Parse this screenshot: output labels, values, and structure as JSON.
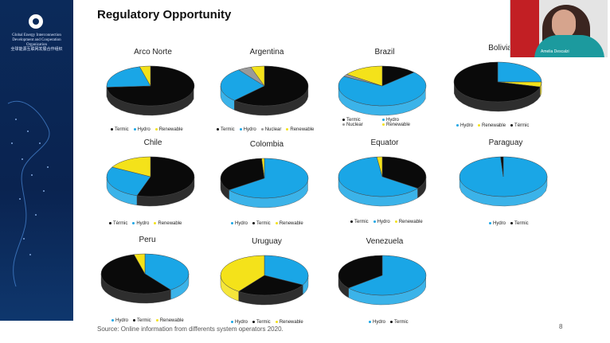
{
  "slide": {
    "title": "Regulatory Opportunity",
    "source": "Source: Online information from differents system operators 2020.",
    "page_number": "8"
  },
  "sidebar": {
    "org_name_en": "Global Energy Interconnection Development and Cooperation Organization",
    "org_name_cn": "全球能源互联网发展合作组织"
  },
  "video": {
    "participant_name": "Amelia Descalzi"
  },
  "colors": {
    "Termic": "#0a0a0a",
    "Hydro": "#1aa6e6",
    "Renewable": "#f4e21a",
    "Nuclear": "#9a9a9a"
  },
  "chart_data": [
    {
      "type": "pie",
      "title": "Arco Norte",
      "legend": [
        "Termic",
        "Hydro",
        "Renewable"
      ],
      "slices": [
        {
          "label": "Termic",
          "value": 74
        },
        {
          "label": "Hydro",
          "value": 22
        },
        {
          "label": "Renewable",
          "value": 4
        }
      ]
    },
    {
      "type": "pie",
      "title": "Argentina",
      "legend": [
        "Termic",
        "Hydro",
        "Nuclear",
        "Renewable"
      ],
      "slices": [
        {
          "label": "Termic",
          "value": 62
        },
        {
          "label": "Hydro",
          "value": 28
        },
        {
          "label": "Nuclear",
          "value": 5
        },
        {
          "label": "Renewable",
          "value": 5
        }
      ]
    },
    {
      "type": "pie",
      "title": "Brazil",
      "legend": [
        "Termic",
        "Hydro",
        "Nuclear",
        "Renewable"
      ],
      "slices": [
        {
          "label": "Termic",
          "value": 13
        },
        {
          "label": "Hydro",
          "value": 70
        },
        {
          "label": "Nuclear",
          "value": 2
        },
        {
          "label": "Renewable",
          "value": 15
        }
      ]
    },
    {
      "type": "pie",
      "title": "Bolivia",
      "legend": [
        "Hydro",
        "Renewable",
        "Térmic"
      ],
      "slices": [
        {
          "label": "Hydro",
          "value": 25
        },
        {
          "label": "Renewable",
          "value": 4
        },
        {
          "label": "Térmic",
          "value": 71
        }
      ]
    },
    {
      "type": "pie",
      "title": "Chile",
      "legend": [
        "Térmic",
        "Hydro",
        "Renewable"
      ],
      "slices": [
        {
          "label": "Térmic",
          "value": 55
        },
        {
          "label": "Hydro",
          "value": 28
        },
        {
          "label": "Renewable",
          "value": 17
        }
      ]
    },
    {
      "type": "pie",
      "title": "Colombia",
      "legend": [
        "Hydro",
        "Termic",
        "Renewable"
      ],
      "slices": [
        {
          "label": "Hydro",
          "value": 65
        },
        {
          "label": "Termic",
          "value": 34
        },
        {
          "label": "Renewable",
          "value": 1
        }
      ]
    },
    {
      "type": "pie",
      "title": "Equator",
      "legend": [
        "Termic",
        "Hydro",
        "Renewable"
      ],
      "slices": [
        {
          "label": "Termic",
          "value": 35
        },
        {
          "label": "Hydro",
          "value": 63
        },
        {
          "label": "Renewable",
          "value": 2
        }
      ]
    },
    {
      "type": "pie",
      "title": "Paraguay",
      "legend": [
        "Hydro",
        "Termic"
      ],
      "slices": [
        {
          "label": "Hydro",
          "value": 99
        },
        {
          "label": "Termic",
          "value": 1
        }
      ]
    },
    {
      "type": "pie",
      "title": "Peru",
      "legend": [
        "Hydro",
        "Termic",
        "Renewable"
      ],
      "slices": [
        {
          "label": "Hydro",
          "value": 40
        },
        {
          "label": "Termic",
          "value": 56
        },
        {
          "label": "Renewable",
          "value": 4
        }
      ]
    },
    {
      "type": "pie",
      "title": "Uruguay",
      "legend": [
        "Hydro",
        "Termic",
        "Renewable"
      ],
      "slices": [
        {
          "label": "Hydro",
          "value": 33
        },
        {
          "label": "Termic",
          "value": 27
        },
        {
          "label": "Renewable",
          "value": 40
        }
      ]
    },
    {
      "type": "pie",
      "title": "Venezuela",
      "legend": [
        "Hydro",
        "Termic"
      ],
      "slices": [
        {
          "label": "Hydro",
          "value": 64
        },
        {
          "label": "Termic",
          "value": 36
        }
      ]
    }
  ]
}
